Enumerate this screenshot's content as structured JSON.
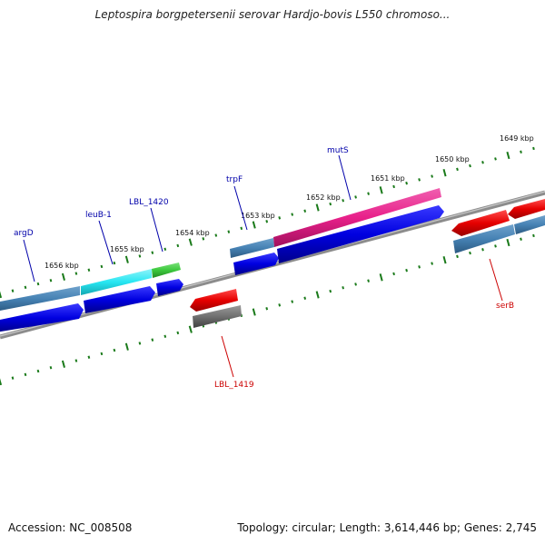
{
  "title": "Leptospira borgpetersenii serovar Hardjo-bovis L550 chromoso...",
  "footer": {
    "accession": "Accession: NC_008508",
    "topology": "Topology: circular; Length: 3,614,446 bp; Genes: 2,745"
  },
  "colors": {
    "ruler_ticks": "#1a7a1a",
    "backbone": "#8c8c8c",
    "cds": "#0000e0",
    "gene": "#4682b4",
    "trna_pink": "#e8208a",
    "misc_cyan": "#27e6f2",
    "misc_green": "#3cc83c",
    "reverse_red": "#e60000",
    "grey_feature": "#707070",
    "forward_label": "#0000aa",
    "reverse_label": "#cc0000"
  },
  "ruler_labels": [
    "1649 kbp",
    "1650 kbp",
    "1651 kbp",
    "1652 kbp",
    "1653 kbp",
    "1654 kbp",
    "1655 kbp",
    "1656 kbp"
  ],
  "forward_genes": [
    {
      "name": "argD",
      "color": "#4682b4"
    },
    {
      "name": "leuB-1",
      "color": "#27e6f2"
    },
    {
      "name": "LBL_1420",
      "color": "#3cc83c"
    },
    {
      "name": "trpF",
      "color": "#4682b4"
    },
    {
      "name": "mutS",
      "color": "#e8208a"
    }
  ],
  "reverse_genes": [
    {
      "name": "LBL_1419",
      "color": "#707070"
    },
    {
      "name": "serB",
      "color": "#e60000"
    }
  ]
}
